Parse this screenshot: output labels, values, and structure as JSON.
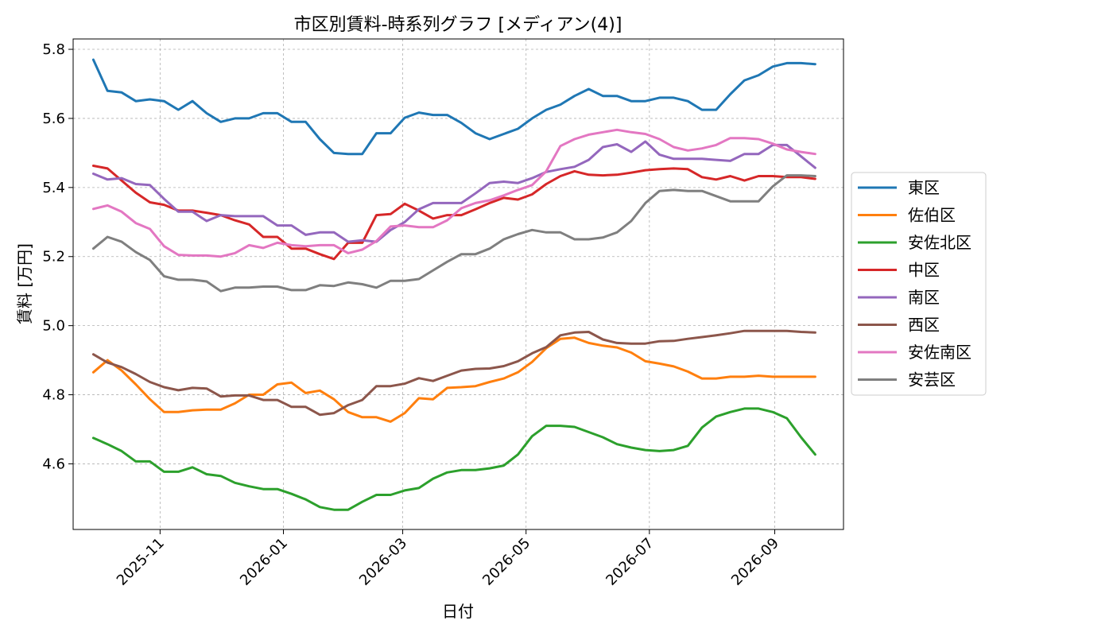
{
  "chart_data": {
    "type": "line",
    "title": "市区別賃料-時系列グラフ [メディアン(4)]",
    "xlabel": "日付",
    "ylabel": "賃料 [万円]",
    "x_axis": "date",
    "xlim": [
      "2025-09-19",
      "2026-10-05"
    ],
    "ylim": [
      4.41,
      5.83
    ],
    "x_ticks": [
      "2025-11-01",
      "2026-01-01",
      "2026-03-01",
      "2026-05-01",
      "2026-07-01",
      "2026-09-01"
    ],
    "x_tick_labels": [
      "2025-11",
      "2026-01",
      "2026-03",
      "2026-05",
      "2026-07",
      "2026-09"
    ],
    "y_ticks": [
      4.6,
      4.8,
      5.0,
      5.2,
      5.4,
      5.6,
      5.8
    ],
    "y_tick_labels": [
      "4.6",
      "4.8",
      "5.0",
      "5.2",
      "5.4",
      "5.6",
      "5.8"
    ],
    "grid": true,
    "legend": "outside-right",
    "x": [
      "2025-09-29",
      "2025-10-06",
      "2025-10-13",
      "2025-10-20",
      "2025-10-27",
      "2025-11-03",
      "2025-11-10",
      "2025-11-17",
      "2025-11-24",
      "2025-12-01",
      "2025-12-08",
      "2025-12-15",
      "2025-12-22",
      "2025-12-29",
      "2026-01-05",
      "2026-01-12",
      "2026-01-19",
      "2026-01-26",
      "2026-02-02",
      "2026-02-09",
      "2026-02-16",
      "2026-02-23",
      "2026-03-02",
      "2026-03-09",
      "2026-03-16",
      "2026-03-23",
      "2026-03-30",
      "2026-04-06",
      "2026-04-13",
      "2026-04-20",
      "2026-04-27",
      "2026-05-04",
      "2026-05-11",
      "2026-05-18",
      "2026-05-25",
      "2026-06-01",
      "2026-06-08",
      "2026-06-15",
      "2026-06-22",
      "2026-06-29",
      "2026-07-06",
      "2026-07-13",
      "2026-07-20",
      "2026-07-27",
      "2026-08-03",
      "2026-08-10",
      "2026-08-17",
      "2026-08-24",
      "2026-08-31",
      "2026-09-07",
      "2026-09-14",
      "2026-09-21"
    ],
    "series": [
      {
        "name": "東区",
        "color": "#1f77b4",
        "values": [
          5.77,
          5.68,
          5.675,
          5.65,
          5.655,
          5.65,
          5.625,
          5.65,
          5.615,
          5.59,
          5.6,
          5.6,
          5.615,
          5.615,
          5.59,
          5.59,
          5.54,
          5.5,
          5.497,
          5.497,
          5.557,
          5.557,
          5.602,
          5.617,
          5.61,
          5.61,
          5.587,
          5.557,
          5.54,
          5.555,
          5.57,
          5.6,
          5.625,
          5.64,
          5.665,
          5.685,
          5.665,
          5.665,
          5.65,
          5.65,
          5.66,
          5.66,
          5.65,
          5.625,
          5.625,
          5.67,
          5.71,
          5.725,
          5.75,
          5.76,
          5.76,
          5.757
        ]
      },
      {
        "name": "佐伯区",
        "color": "#ff7f0e",
        "values": [
          4.865,
          4.9,
          4.87,
          4.83,
          4.787,
          4.75,
          4.75,
          4.755,
          4.757,
          4.757,
          4.775,
          4.8,
          4.8,
          4.83,
          4.835,
          4.805,
          4.812,
          4.787,
          4.75,
          4.735,
          4.735,
          4.722,
          4.747,
          4.79,
          4.787,
          4.82,
          4.822,
          4.825,
          4.837,
          4.847,
          4.865,
          4.895,
          4.935,
          4.962,
          4.965,
          4.95,
          4.942,
          4.937,
          4.922,
          4.897,
          4.89,
          4.882,
          4.867,
          4.847,
          4.847,
          4.852,
          4.852,
          4.855,
          4.852,
          4.852,
          4.852,
          4.852
        ]
      },
      {
        "name": "安佐北区",
        "color": "#2ca02c",
        "values": [
          4.675,
          4.657,
          4.637,
          4.607,
          4.607,
          4.577,
          4.577,
          4.59,
          4.57,
          4.565,
          4.545,
          4.535,
          4.527,
          4.527,
          4.513,
          4.497,
          4.475,
          4.467,
          4.467,
          4.49,
          4.51,
          4.51,
          4.523,
          4.53,
          4.557,
          4.575,
          4.582,
          4.582,
          4.587,
          4.595,
          4.627,
          4.68,
          4.71,
          4.71,
          4.707,
          4.692,
          4.677,
          4.657,
          4.647,
          4.64,
          4.637,
          4.64,
          4.652,
          4.705,
          4.737,
          4.75,
          4.76,
          4.76,
          4.75,
          4.732,
          4.677,
          4.627
        ]
      },
      {
        "name": "中区",
        "color": "#d62728",
        "values": [
          5.463,
          5.455,
          5.42,
          5.385,
          5.357,
          5.35,
          5.333,
          5.333,
          5.327,
          5.32,
          5.305,
          5.293,
          5.257,
          5.257,
          5.223,
          5.223,
          5.207,
          5.193,
          5.24,
          5.24,
          5.32,
          5.323,
          5.353,
          5.333,
          5.31,
          5.32,
          5.32,
          5.337,
          5.355,
          5.37,
          5.365,
          5.38,
          5.41,
          5.433,
          5.447,
          5.437,
          5.435,
          5.437,
          5.443,
          5.45,
          5.453,
          5.455,
          5.453,
          5.43,
          5.423,
          5.433,
          5.42,
          5.433,
          5.433,
          5.43,
          5.43,
          5.425
        ]
      },
      {
        "name": "南区",
        "color": "#9467bd",
        "values": [
          5.44,
          5.423,
          5.427,
          5.41,
          5.407,
          5.367,
          5.33,
          5.33,
          5.303,
          5.32,
          5.317,
          5.317,
          5.317,
          5.29,
          5.29,
          5.263,
          5.27,
          5.27,
          5.243,
          5.247,
          5.243,
          5.277,
          5.3,
          5.337,
          5.355,
          5.355,
          5.355,
          5.383,
          5.413,
          5.417,
          5.413,
          5.427,
          5.445,
          5.453,
          5.46,
          5.48,
          5.517,
          5.525,
          5.503,
          5.533,
          5.495,
          5.483,
          5.483,
          5.483,
          5.48,
          5.477,
          5.497,
          5.497,
          5.523,
          5.523,
          5.49,
          5.457
        ]
      },
      {
        "name": "西区",
        "color": "#8c564b",
        "values": [
          4.917,
          4.893,
          4.88,
          4.86,
          4.837,
          4.822,
          4.813,
          4.82,
          4.818,
          4.795,
          4.798,
          4.798,
          4.785,
          4.785,
          4.765,
          4.765,
          4.742,
          4.747,
          4.77,
          4.785,
          4.825,
          4.825,
          4.832,
          4.848,
          4.84,
          4.855,
          4.87,
          4.875,
          4.876,
          4.883,
          4.897,
          4.92,
          4.938,
          4.972,
          4.98,
          4.982,
          4.96,
          4.95,
          4.948,
          4.948,
          4.955,
          4.956,
          4.962,
          4.967,
          4.972,
          4.978,
          4.985,
          4.985,
          4.985,
          4.985,
          4.982,
          4.98
        ]
      },
      {
        "name": "安佐南区",
        "color": "#e377c2",
        "values": [
          5.338,
          5.348,
          5.33,
          5.297,
          5.28,
          5.23,
          5.205,
          5.203,
          5.203,
          5.2,
          5.21,
          5.233,
          5.225,
          5.24,
          5.233,
          5.23,
          5.233,
          5.233,
          5.21,
          5.22,
          5.245,
          5.287,
          5.29,
          5.285,
          5.285,
          5.305,
          5.34,
          5.355,
          5.363,
          5.377,
          5.393,
          5.407,
          5.447,
          5.52,
          5.54,
          5.553,
          5.56,
          5.567,
          5.56,
          5.555,
          5.54,
          5.517,
          5.507,
          5.513,
          5.523,
          5.543,
          5.543,
          5.54,
          5.527,
          5.51,
          5.503,
          5.497
        ]
      },
      {
        "name": "安芸区",
        "color": "#7f7f7f",
        "values": [
          5.223,
          5.257,
          5.243,
          5.213,
          5.19,
          5.143,
          5.133,
          5.133,
          5.128,
          5.1,
          5.11,
          5.11,
          5.113,
          5.113,
          5.103,
          5.103,
          5.117,
          5.115,
          5.125,
          5.12,
          5.11,
          5.13,
          5.13,
          5.135,
          5.16,
          5.185,
          5.207,
          5.207,
          5.223,
          5.25,
          5.265,
          5.277,
          5.27,
          5.27,
          5.25,
          5.25,
          5.255,
          5.27,
          5.303,
          5.355,
          5.39,
          5.393,
          5.39,
          5.39,
          5.375,
          5.36,
          5.36,
          5.36,
          5.403,
          5.435,
          5.435,
          5.433
        ]
      }
    ]
  }
}
